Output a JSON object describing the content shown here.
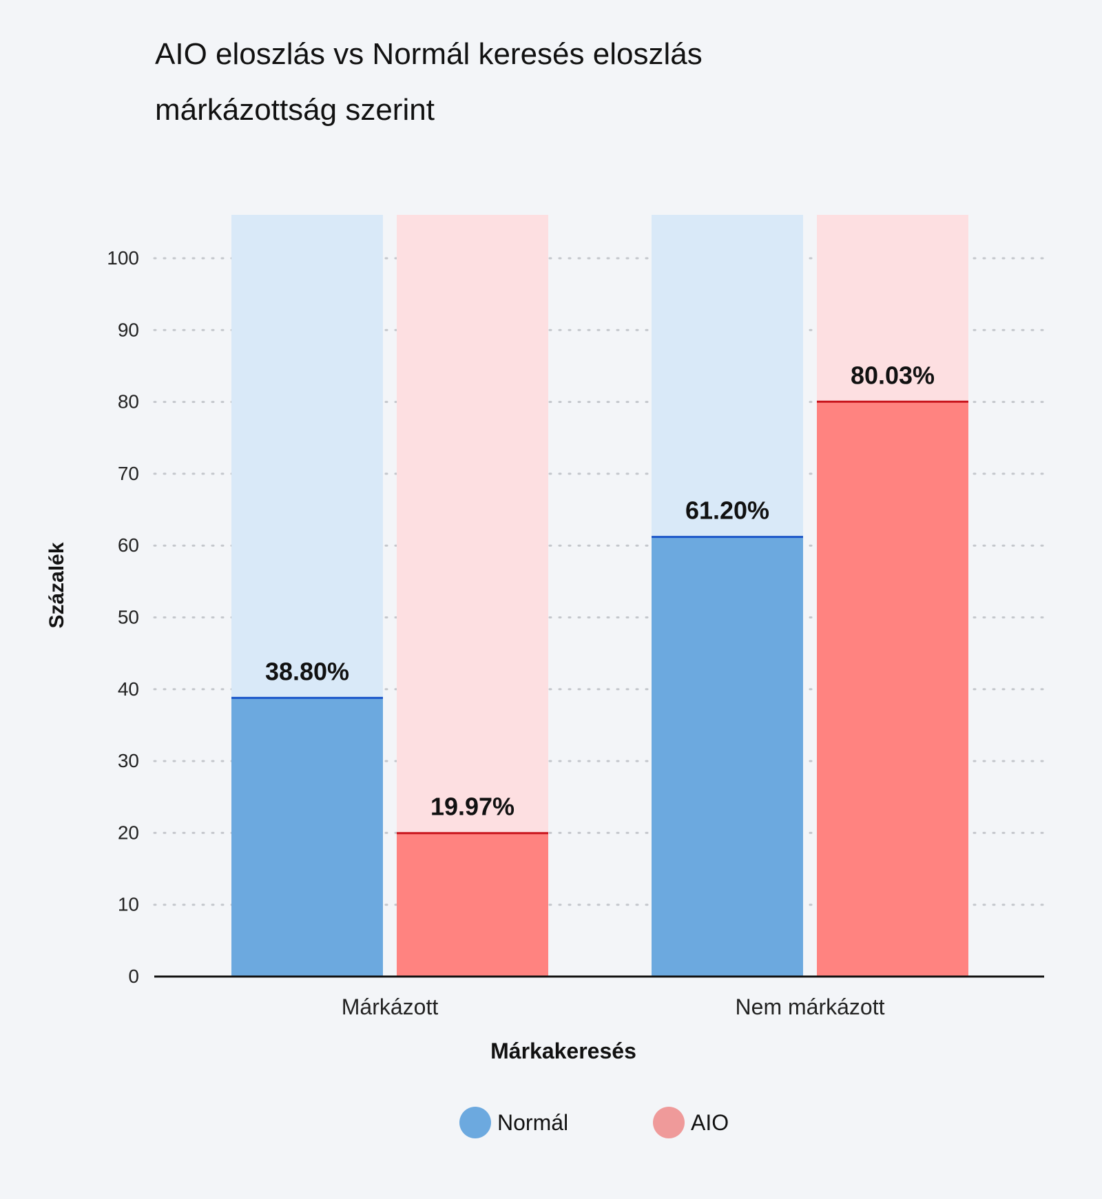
{
  "chart_data": {
    "type": "bar",
    "title_lines": [
      "AIO eloszlás vs Normál keresés eloszlás",
      "márkázottság szerint"
    ],
    "xlabel": "Márkakeresés",
    "ylabel": "Százalék",
    "categories": [
      "Márkázott",
      "Nem márkázott"
    ],
    "series": [
      {
        "name": "Normál",
        "values": [
          38.8,
          61.2
        ],
        "labels": [
          "38.80%",
          "61.20%"
        ],
        "color": "#6ca9df",
        "track_color": "#d9e9f8",
        "top_line_color": "#1a56c9"
      },
      {
        "name": "AIO",
        "values": [
          19.97,
          80.03
        ],
        "labels": [
          "19.97%",
          "80.03%"
        ],
        "color": "#ff8380",
        "track_color": "#fddfe1",
        "top_line_color": "#c8141c"
      }
    ],
    "legend_colors": [
      "#6ca9df",
      "#ef9a9a"
    ],
    "y_ticks": [
      "0",
      "10",
      "20",
      "30",
      "40",
      "50",
      "60",
      "70",
      "80",
      "90",
      "100"
    ],
    "ylim": [
      0,
      100
    ],
    "grid": true,
    "legend_position": "bottom-center"
  }
}
